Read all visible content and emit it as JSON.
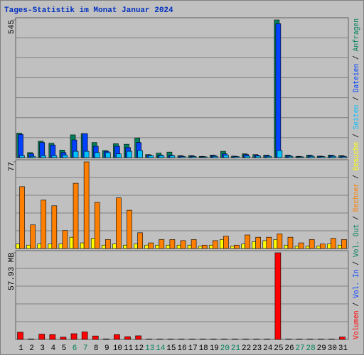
{
  "title": "Tages-Statistik im Monat Januar 2024",
  "side_legend": [
    {
      "name": "Vol. In",
      "color": "#0040ff"
    },
    {
      "name": "Vol. Out",
      "color": "#00805c"
    }
  ],
  "separator": " / ",
  "chart_data": [
    {
      "type": "bar",
      "ylim": [
        0,
        545
      ],
      "yticks": [
        545
      ],
      "series": [
        {
          "name": "Anfragen",
          "color": "#00805c",
          "values": [
            97,
            20,
            65,
            57,
            30,
            90,
            95,
            60,
            28,
            55,
            53,
            78,
            12,
            18,
            22,
            8,
            8,
            5,
            10,
            25,
            6,
            15,
            12,
            10,
            545,
            10,
            5,
            10,
            6,
            10,
            8
          ]
        },
        {
          "name": "Dateien",
          "color": "#0040ff",
          "values": [
            92,
            15,
            60,
            50,
            20,
            70,
            95,
            45,
            25,
            45,
            40,
            60,
            10,
            10,
            10,
            6,
            6,
            4,
            8,
            15,
            5,
            12,
            10,
            8,
            530,
            8,
            4,
            8,
            5,
            8,
            6
          ]
        },
        {
          "name": "Seiten",
          "color": "#00c0ff",
          "values": [
            8,
            5,
            8,
            8,
            10,
            25,
            25,
            20,
            20,
            15,
            25,
            28,
            8,
            8,
            8,
            4,
            4,
            3,
            5,
            10,
            4,
            6,
            6,
            5,
            28,
            5,
            3,
            5,
            4,
            5,
            4
          ]
        }
      ]
    },
    {
      "type": "bar",
      "ylim": [
        0,
        77
      ],
      "yticks": [
        77
      ],
      "series": [
        {
          "name": "Besuche",
          "color": "#ffff00",
          "values": [
            4,
            3,
            4,
            4,
            4,
            10,
            5,
            9,
            3,
            4,
            3,
            4,
            3,
            3,
            3,
            3,
            3,
            2,
            3,
            8,
            2,
            4,
            6,
            7,
            8,
            3,
            2,
            2,
            2,
            4,
            3
          ]
        },
        {
          "name": "Rechner",
          "color": "#ff8000",
          "values": [
            55,
            21,
            43,
            38,
            16,
            58,
            77,
            41,
            8,
            45,
            34,
            14,
            5,
            8,
            8,
            7,
            8,
            3,
            7,
            11,
            3,
            12,
            10,
            10,
            13,
            10,
            5,
            8,
            4,
            9,
            8
          ]
        }
      ]
    },
    {
      "type": "bar",
      "ylim": [
        0,
        57.93
      ],
      "yticks": [
        {
          "value": 57.93,
          "label": "57.93 MB"
        }
      ],
      "categories": [
        "1",
        "2",
        "3",
        "4",
        "5",
        "6",
        "7",
        "8",
        "9",
        "10",
        "11",
        "12",
        "13",
        "14",
        "15",
        "16",
        "17",
        "18",
        "19",
        "20",
        "21",
        "22",
        "23",
        "24",
        "25",
        "26",
        "27",
        "28",
        "29",
        "30",
        "31"
      ],
      "weekend": [
        false,
        false,
        false,
        false,
        false,
        true,
        true,
        false,
        false,
        false,
        false,
        false,
        true,
        true,
        false,
        false,
        false,
        false,
        false,
        true,
        true,
        false,
        false,
        false,
        false,
        false,
        true,
        true,
        false,
        false,
        false
      ],
      "weekend_color": "#00805c",
      "weekday_color": "#000000",
      "series": [
        {
          "name": "Volumen",
          "color": "#ff0000",
          "values": [
            4.8,
            0.3,
            3.5,
            3.2,
            1.5,
            3.8,
            5,
            2.3,
            0.3,
            3.2,
            1.8,
            2.4,
            0.2,
            0.2,
            0.2,
            0.2,
            0.2,
            0.2,
            0.2,
            0.2,
            0.2,
            0.2,
            0.2,
            0.2,
            57.93,
            0.2,
            0.2,
            0.2,
            0.2,
            0.2,
            1.6
          ]
        }
      ]
    }
  ]
}
